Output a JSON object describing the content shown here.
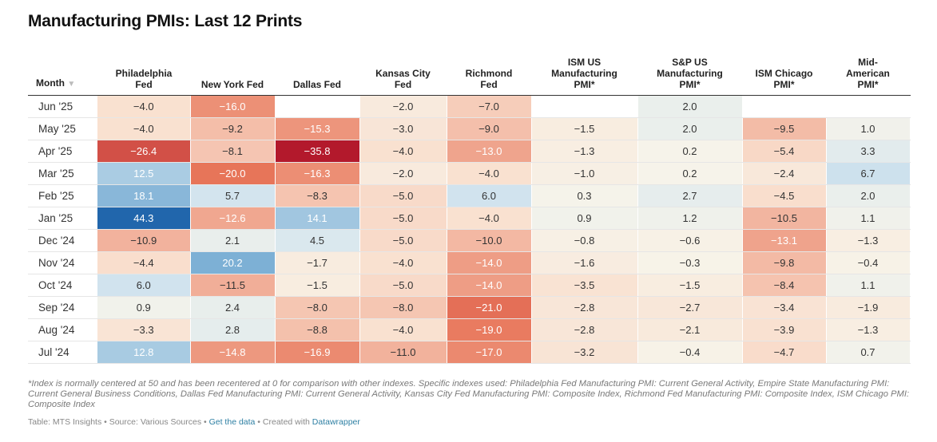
{
  "title": "Manufacturing PMIs: Last 12 Prints",
  "chart_data": {
    "type": "table",
    "title": "Manufacturing PMIs: Last 12 Prints",
    "row_header": "Month",
    "columns": [
      [
        "Philadelphia",
        "Fed"
      ],
      [
        "New York Fed"
      ],
      [
        "Dallas Fed"
      ],
      [
        "Kansas City",
        "Fed"
      ],
      [
        "Richmond",
        "Fed"
      ],
      [
        "ISM US",
        "Manufacturing",
        "PMI*"
      ],
      [
        "S&P US",
        "Manufacturing",
        "PMI*"
      ],
      [
        "ISM Chicago",
        "PMI*"
      ],
      [
        "Mid-",
        "American",
        "PMI*"
      ]
    ],
    "rows": [
      {
        "month": "Jun '25",
        "values": [
          -4.0,
          -16.0,
          null,
          -2.0,
          -7.0,
          null,
          2.0,
          null,
          null
        ]
      },
      {
        "month": "May '25",
        "values": [
          -4.0,
          -9.2,
          -15.3,
          -3.0,
          -9.0,
          -1.5,
          2.0,
          -9.5,
          1.0
        ]
      },
      {
        "month": "Apr '25",
        "values": [
          -26.4,
          -8.1,
          -35.8,
          -4.0,
          -13.0,
          -1.3,
          0.2,
          -5.4,
          3.3
        ]
      },
      {
        "month": "Mar '25",
        "values": [
          12.5,
          -20.0,
          -16.3,
          -2.0,
          -4.0,
          -1.0,
          0.2,
          -2.4,
          6.7
        ]
      },
      {
        "month": "Feb '25",
        "values": [
          18.1,
          5.7,
          -8.3,
          -5.0,
          6.0,
          0.3,
          2.7,
          -4.5,
          2.0
        ]
      },
      {
        "month": "Jan '25",
        "values": [
          44.3,
          -12.6,
          14.1,
          -5.0,
          -4.0,
          0.9,
          1.2,
          -10.5,
          1.1
        ]
      },
      {
        "month": "Dec '24",
        "values": [
          -10.9,
          2.1,
          4.5,
          -5.0,
          -10.0,
          -0.8,
          -0.6,
          -13.1,
          -1.3
        ]
      },
      {
        "month": "Nov '24",
        "values": [
          -4.4,
          20.2,
          -1.7,
          -4.0,
          -14.0,
          -1.6,
          -0.3,
          -9.8,
          -0.4
        ]
      },
      {
        "month": "Oct '24",
        "values": [
          6.0,
          -11.5,
          -1.5,
          -5.0,
          -14.0,
          -3.5,
          -1.5,
          -8.4,
          1.1
        ]
      },
      {
        "month": "Sep '24",
        "values": [
          0.9,
          2.4,
          -8.0,
          -8.0,
          -21.0,
          -2.8,
          -2.7,
          -3.4,
          -1.9
        ]
      },
      {
        "month": "Aug '24",
        "values": [
          -3.3,
          2.8,
          -8.8,
          -4.0,
          -19.0,
          -2.8,
          -2.1,
          -3.9,
          -1.3
        ]
      },
      {
        "month": "Jul '24",
        "values": [
          12.8,
          -14.8,
          -16.9,
          -11.0,
          -17.0,
          -3.2,
          -0.4,
          -4.7,
          0.7
        ]
      }
    ]
  },
  "colors": {
    "negative_strong": "#b2182b",
    "negative_mid": "#e8765a",
    "negative_light": "#f9dfce",
    "neutral": "#f7f4ea",
    "positive_light": "#d5e6ef",
    "positive_mid": "#7fb1d6",
    "positive_strong": "#2166ac"
  },
  "sort_icon": "sort-down-icon",
  "footnote": "*Index is normally centered at 50 and has been recentered at 0 for comparison with other indexes. Specific indexes used: Philadelphia Fed Manufacturing PMI: Current General Activity, Empire State Manufacturing PMI: Current General Business Conditions, Dallas Fed Manufacturing PMI: Current General Activity, Kansas City Fed Manufacturing PMI: Composite Index, Richmond Fed Manufacturing PMI: Composite Index, ISM Chicago PMI: Composite Index",
  "source": {
    "prefix": "Table: MTS Insights • Source: Various Sources • ",
    "get_data": "Get the data",
    "middle": " • Created with ",
    "created_with": "Datawrapper"
  }
}
